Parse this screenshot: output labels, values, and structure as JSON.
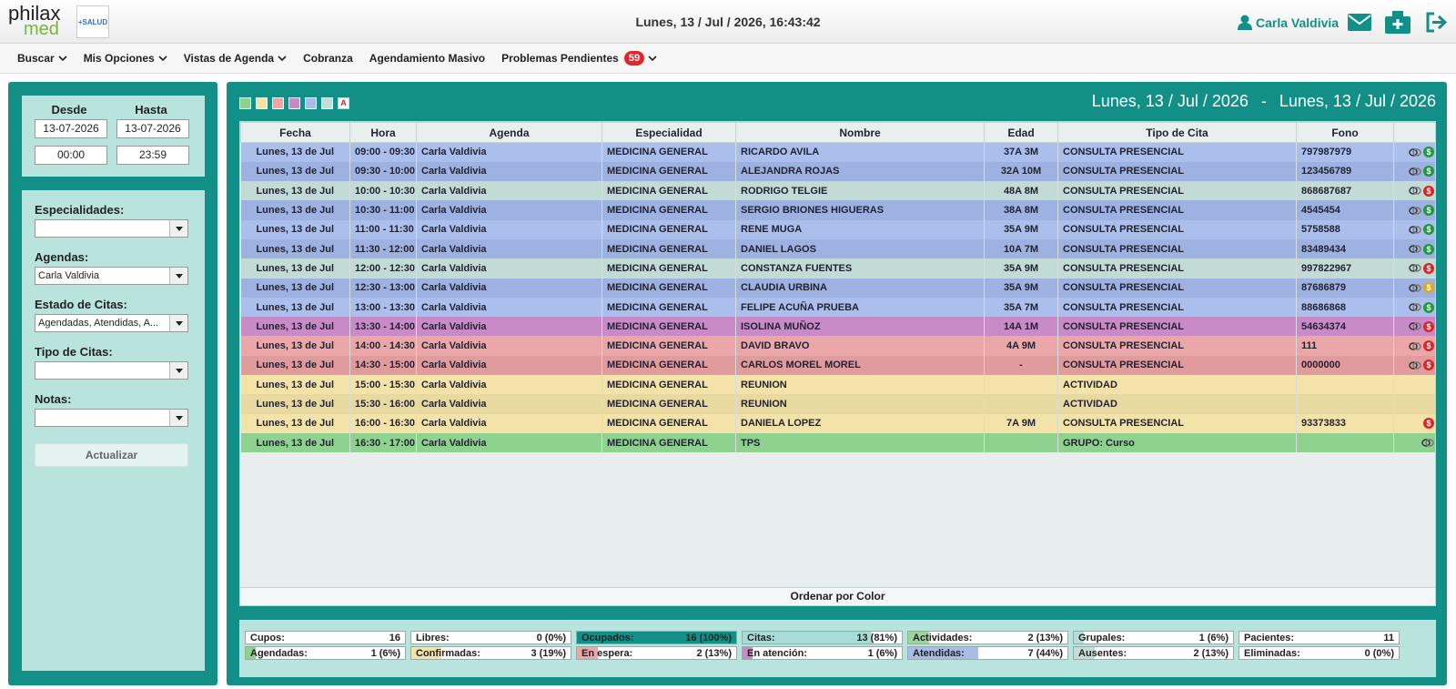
{
  "header": {
    "logo": {
      "brand": "philax",
      "sub": "med",
      "partner": "+SALUD"
    },
    "datetime": "Lunes, 13 / Jul / 2026, 16:43:42",
    "user": "Carla Valdivia"
  },
  "nav": {
    "items": [
      "Buscar",
      "Mis Opciones",
      "Vistas de Agenda",
      "Cobranza",
      "Agendamiento Masivo",
      "Problemas Pendientes"
    ],
    "badge": "59"
  },
  "sidebar": {
    "dates": {
      "from_label": "Desde",
      "to_label": "Hasta",
      "from_date": "13-07-2026",
      "to_date": "13-07-2026",
      "from_time": "00:00",
      "to_time": "23:59"
    },
    "filters": [
      {
        "label": "Especialidades:",
        "value": null
      },
      {
        "label": "Agendas:",
        "value": "Carla Valdivia"
      },
      {
        "label": "Estado de Citas:",
        "value": "Agendadas, Atendidas, A..."
      },
      {
        "label": "Tipo de Citas:",
        "value": null
      },
      {
        "label": "Notas:",
        "value": null
      }
    ],
    "button": "Actualizar"
  },
  "main": {
    "swatches": {
      "colors": [
        "#8fd18e",
        "#f3e3a8",
        "#eba7a8",
        "#c98bc8",
        "#a8bce8",
        "#c4dcd6"
      ],
      "text_marker": "A"
    },
    "range": {
      "from": "Lunes, 13 / Jul / 2026",
      "separator": "-",
      "to": "Lunes, 13 / Jul / 2026"
    },
    "icons": {
      "pay": "$"
    },
    "table": {
      "columns": [
        "Fecha",
        "Hora",
        "Agenda",
        "Especialidad",
        "Nombre",
        "Edad",
        "Tipo de Cita",
        "Fono"
      ],
      "rows": [
        {
          "cells": [
            "Lunes, 13 de Jul",
            "09:00 - 09:30",
            "Carla Valdivia",
            "MEDICINA GENERAL",
            "RICARDO AVILA",
            "37A 3M",
            "CONSULTA PRESENCIAL",
            "797987979"
          ],
          "color": "#aabfeb",
          "link": true,
          "pay": "#1f9a3a"
        },
        {
          "cells": [
            "Lunes, 13 de Jul",
            "09:30 - 10:00",
            "Carla Valdivia",
            "MEDICINA GENERAL",
            "ALEJANDRA ROJAS",
            "32A 10M",
            "CONSULTA PRESENCIAL",
            "123456789"
          ],
          "color": "#9db2e0",
          "link": true,
          "pay": "#1f9a3a"
        },
        {
          "cells": [
            "Lunes, 13 de Jul",
            "10:00 - 10:30",
            "Carla Valdivia",
            "MEDICINA GENERAL",
            "RODRIGO TELGIE",
            "48A 8M",
            "CONSULTA PRESENCIAL",
            "868687687"
          ],
          "color": "#c2dbd5",
          "link": true,
          "pay": "#d9262b"
        },
        {
          "cells": [
            "Lunes, 13 de Jul",
            "10:30 - 11:00",
            "Carla Valdivia",
            "MEDICINA GENERAL",
            "SERGIO BRIONES HIGUERAS",
            "38A 8M",
            "CONSULTA PRESENCIAL",
            "4545454"
          ],
          "color": "#9db2e0",
          "link": true,
          "pay": "#1f9a3a"
        },
        {
          "cells": [
            "Lunes, 13 de Jul",
            "11:00 - 11:30",
            "Carla Valdivia",
            "MEDICINA GENERAL",
            "RENE MUGA",
            "35A 9M",
            "CONSULTA PRESENCIAL",
            "5758588"
          ],
          "color": "#aabfeb",
          "link": true,
          "pay": "#1f9a3a"
        },
        {
          "cells": [
            "Lunes, 13 de Jul",
            "11:30 - 12:00",
            "Carla Valdivia",
            "MEDICINA GENERAL",
            "DANIEL LAGOS",
            "10A 7M",
            "CONSULTA PRESENCIAL",
            "83489434"
          ],
          "color": "#9db2e0",
          "link": true,
          "pay": "#1f9a3a"
        },
        {
          "cells": [
            "Lunes, 13 de Jul",
            "12:00 - 12:30",
            "Carla Valdivia",
            "MEDICINA GENERAL",
            "CONSTANZA FUENTES",
            "35A 9M",
            "CONSULTA PRESENCIAL",
            "997822967"
          ],
          "color": "#c2dbd5",
          "link": true,
          "pay": "#d9262b"
        },
        {
          "cells": [
            "Lunes, 13 de Jul",
            "12:30 - 13:00",
            "Carla Valdivia",
            "MEDICINA GENERAL",
            "CLAUDIA URBINA",
            "35A 9M",
            "CONSULTA PRESENCIAL",
            "87686879"
          ],
          "color": "#9db2e0",
          "link": true,
          "pay": "#e0a81c"
        },
        {
          "cells": [
            "Lunes, 13 de Jul",
            "13:00 - 13:30",
            "Carla Valdivia",
            "MEDICINA GENERAL",
            "FELIPE ACUÑA PRUEBA",
            "35A 7M",
            "CONSULTA PRESENCIAL",
            "88686868"
          ],
          "color": "#aabfeb",
          "link": true,
          "pay": "#1f9a3a"
        },
        {
          "cells": [
            "Lunes, 13 de Jul",
            "13:30 - 14:00",
            "Carla Valdivia",
            "MEDICINA GENERAL",
            "ISOLINA MUÑOZ",
            "14A 1M",
            "CONSULTA PRESENCIAL",
            "54634374"
          ],
          "color": "#c98bc8",
          "link": true,
          "pay": "#d9262b"
        },
        {
          "cells": [
            "Lunes, 13 de Jul",
            "14:00 - 14:30",
            "Carla Valdivia",
            "MEDICINA GENERAL",
            "DAVID BRAVO",
            "4A 9M",
            "CONSULTA PRESENCIAL",
            "111"
          ],
          "color": "#eba7a8",
          "link": true,
          "pay": "#d9262b"
        },
        {
          "cells": [
            "Lunes, 13 de Jul",
            "14:30 - 15:00",
            "Carla Valdivia",
            "MEDICINA GENERAL",
            "CARLOS MOREL MOREL",
            "-",
            "CONSULTA PRESENCIAL",
            "0000000"
          ],
          "color": "#e09b9d",
          "link": true,
          "pay": "#d9262b"
        },
        {
          "cells": [
            "Lunes, 13 de Jul",
            "15:00 - 15:30",
            "Carla Valdivia",
            "MEDICINA GENERAL",
            "REUNION",
            null,
            "ACTIVIDAD",
            null
          ],
          "color": "#f3e3a8",
          "link": false,
          "pay": null
        },
        {
          "cells": [
            "Lunes, 13 de Jul",
            "15:30 - 16:00",
            "Carla Valdivia",
            "MEDICINA GENERAL",
            "REUNION",
            null,
            "ACTIVIDAD",
            null
          ],
          "color": "#e7d9a0",
          "link": false,
          "pay": null
        },
        {
          "cells": [
            "Lunes, 13 de Jul",
            "16:00 - 16:30",
            "Carla Valdivia",
            "MEDICINA GENERAL",
            "DANIELA LOPEZ",
            "7A 9M",
            "CONSULTA PRESENCIAL",
            "93373833"
          ],
          "color": "#f3e3a8",
          "link": false,
          "pay": "#d9262b"
        },
        {
          "cells": [
            "Lunes, 13 de Jul",
            "16:30 - 17:00",
            "Carla Valdivia",
            "MEDICINA GENERAL",
            "TPS",
            null,
            "GRUPO: Curso",
            null
          ],
          "color": "#8fd18e",
          "link": true,
          "pay": null
        }
      ],
      "footer": "Ordenar por Color"
    },
    "stats": [
      [
        {
          "label": "Cupos:",
          "value": "16",
          "pct": null,
          "color": null
        },
        {
          "label": "Libres:",
          "value": "0 (0%)",
          "pct": 0,
          "color": "#c4dcd6"
        },
        {
          "label": "Ocupados:",
          "value": "16 (100%)",
          "pct": 100,
          "color": "#128f87"
        },
        {
          "label": "Citas:",
          "value": "13 (81%)",
          "pct": 81,
          "color": "#a8dcd6"
        },
        {
          "label": "Actividades:",
          "value": "2 (13%)",
          "pct": 13,
          "color": "#9fd49e"
        },
        {
          "label": "Grupales:",
          "value": "1 (6%)",
          "pct": 6,
          "color": "#b8dcd8"
        },
        {
          "label": "Pacientes:",
          "value": "11",
          "pct": null,
          "color": null
        }
      ],
      [
        {
          "label": "Agendadas:",
          "value": "1 (6%)",
          "pct": 6,
          "color": "#8fd18e"
        },
        {
          "label": "Confirmadas:",
          "value": "3 (19%)",
          "pct": 19,
          "color": "#f3e3a8"
        },
        {
          "label": "En espera:",
          "value": "2 (13%)",
          "pct": 13,
          "color": "#eba7a8"
        },
        {
          "label": "En atención:",
          "value": "1 (6%)",
          "pct": 6,
          "color": "#c98bc8"
        },
        {
          "label": "Atendidas:",
          "value": "7 (44%)",
          "pct": 44,
          "color": "#a8bce8"
        },
        {
          "label": "Ausentes:",
          "value": "2 (13%)",
          "pct": 13,
          "color": "#c4dcd6"
        },
        {
          "label": "Eliminadas:",
          "value": "0 (0%)",
          "pct": 0,
          "color": "#c4dcd6"
        }
      ]
    ]
  }
}
